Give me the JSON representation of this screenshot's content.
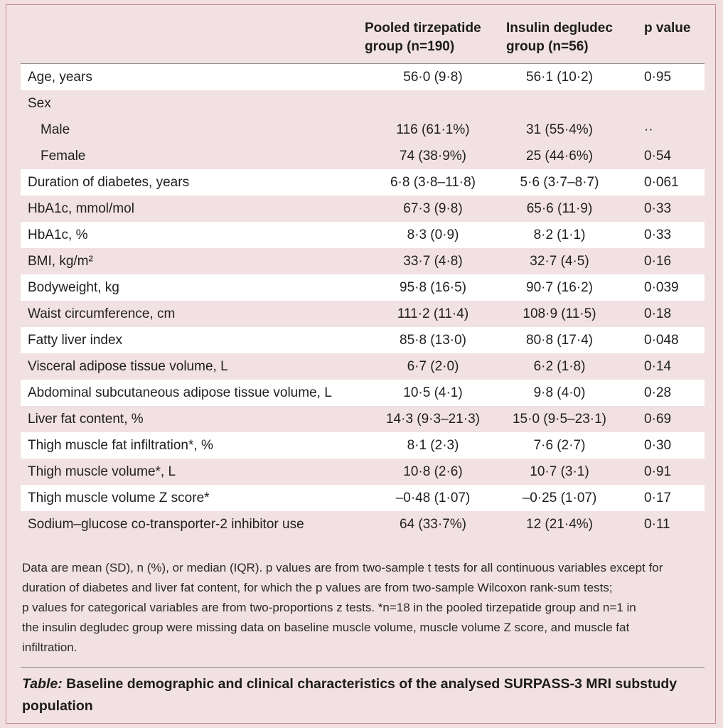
{
  "header": {
    "group1_line1": "Pooled tirzepatide",
    "group1_line2": "group (n=190)",
    "group2_line1": "Insulin degludec",
    "group2_line2": "group (n=56)",
    "pvalue": "p value"
  },
  "rows": [
    {
      "label": "Age, years",
      "g1": "56·0 (9·8)",
      "g2": "56·1 (10·2)",
      "p": "0·95"
    },
    {
      "label": "Sex",
      "g1": "",
      "g2": "",
      "p": ""
    },
    {
      "label": "Male",
      "g1": "116 (61·1%)",
      "g2": "31 (55·4%)",
      "p": "··"
    },
    {
      "label": "Female",
      "g1": "74 (38·9%)",
      "g2": "25 (44·6%)",
      "p": "0·54"
    },
    {
      "label": "Duration of diabetes, years",
      "g1": "6·8 (3·8–11·8)",
      "g2": "5·6 (3·7–8·7)",
      "p": "0·061"
    },
    {
      "label": "HbA1c, mmol/mol",
      "g1": "67·3 (9·8)",
      "g2": "65·6 (11·9)",
      "p": "0·33"
    },
    {
      "label": "HbA1c, %",
      "g1": "8·3 (0·9)",
      "g2": "8·2 (1·1)",
      "p": "0·33"
    },
    {
      "label": "BMI, kg/m²",
      "g1": "33·7 (4·8)",
      "g2": "32·7 (4·5)",
      "p": "0·16"
    },
    {
      "label": "Bodyweight, kg",
      "g1": "95·8 (16·5)",
      "g2": "90·7 (16·2)",
      "p": "0·039"
    },
    {
      "label": "Waist circumference, cm",
      "g1": "111·2 (11·4)",
      "g2": "108·9 (11·5)",
      "p": "0·18"
    },
    {
      "label": "Fatty liver index",
      "g1": "85·8 (13·0)",
      "g2": "80·8 (17·4)",
      "p": "0·048"
    },
    {
      "label": "Visceral adipose tissue volume, L",
      "g1": "6·7 (2·0)",
      "g2": "6·2 (1·8)",
      "p": "0·14"
    },
    {
      "label": "Abdominal subcutaneous adipose tissue volume, L",
      "g1": "10·5 (4·1)",
      "g2": "9·8 (4·0)",
      "p": "0·28"
    },
    {
      "label": "Liver fat content, %",
      "g1": "14·3 (9·3–21·3)",
      "g2": "15·0 (9·5–23·1)",
      "p": "0·69"
    },
    {
      "label": "Thigh muscle fat infiltration*, %",
      "g1": "8·1 (2·3)",
      "g2": "7·6 (2·7)",
      "p": "0·30"
    },
    {
      "label": "Thigh muscle volume*, L",
      "g1": "10·8 (2·6)",
      "g2": "10·7 (3·1)",
      "p": "0·91"
    },
    {
      "label": "Thigh muscle volume Z score*",
      "g1": "–0·48 (1·07)",
      "g2": "–0·25 (1·07)",
      "p": "0·17"
    },
    {
      "label": "Sodium–glucose co-transporter-2 inhibitor use",
      "g1": "64 (33·7%)",
      "g2": "12 (21·4%)",
      "p": "0·11"
    }
  ],
  "footnote": {
    "line1": "Data are mean (SD), n (%), or median (IQR). p values are from two-sample t tests for all continuous variables except for",
    "line2": "duration of diabetes and liver fat content, for which the p values are from two-sample Wilcoxon rank-sum tests;",
    "line3": "p values for categorical variables are from two-proportions z tests. *n=18 in the pooled tirzepatide group and n=1 in",
    "line4": "the insulin degludec group were missing data on baseline muscle volume, muscle volume Z score, and muscle fat",
    "line5": "infiltration."
  },
  "caption": {
    "prefix": "Table:",
    "line1": "Baseline demographic and clinical characteristics of the analysed SURPASS-3 MRI substudy",
    "line2": "population"
  }
}
